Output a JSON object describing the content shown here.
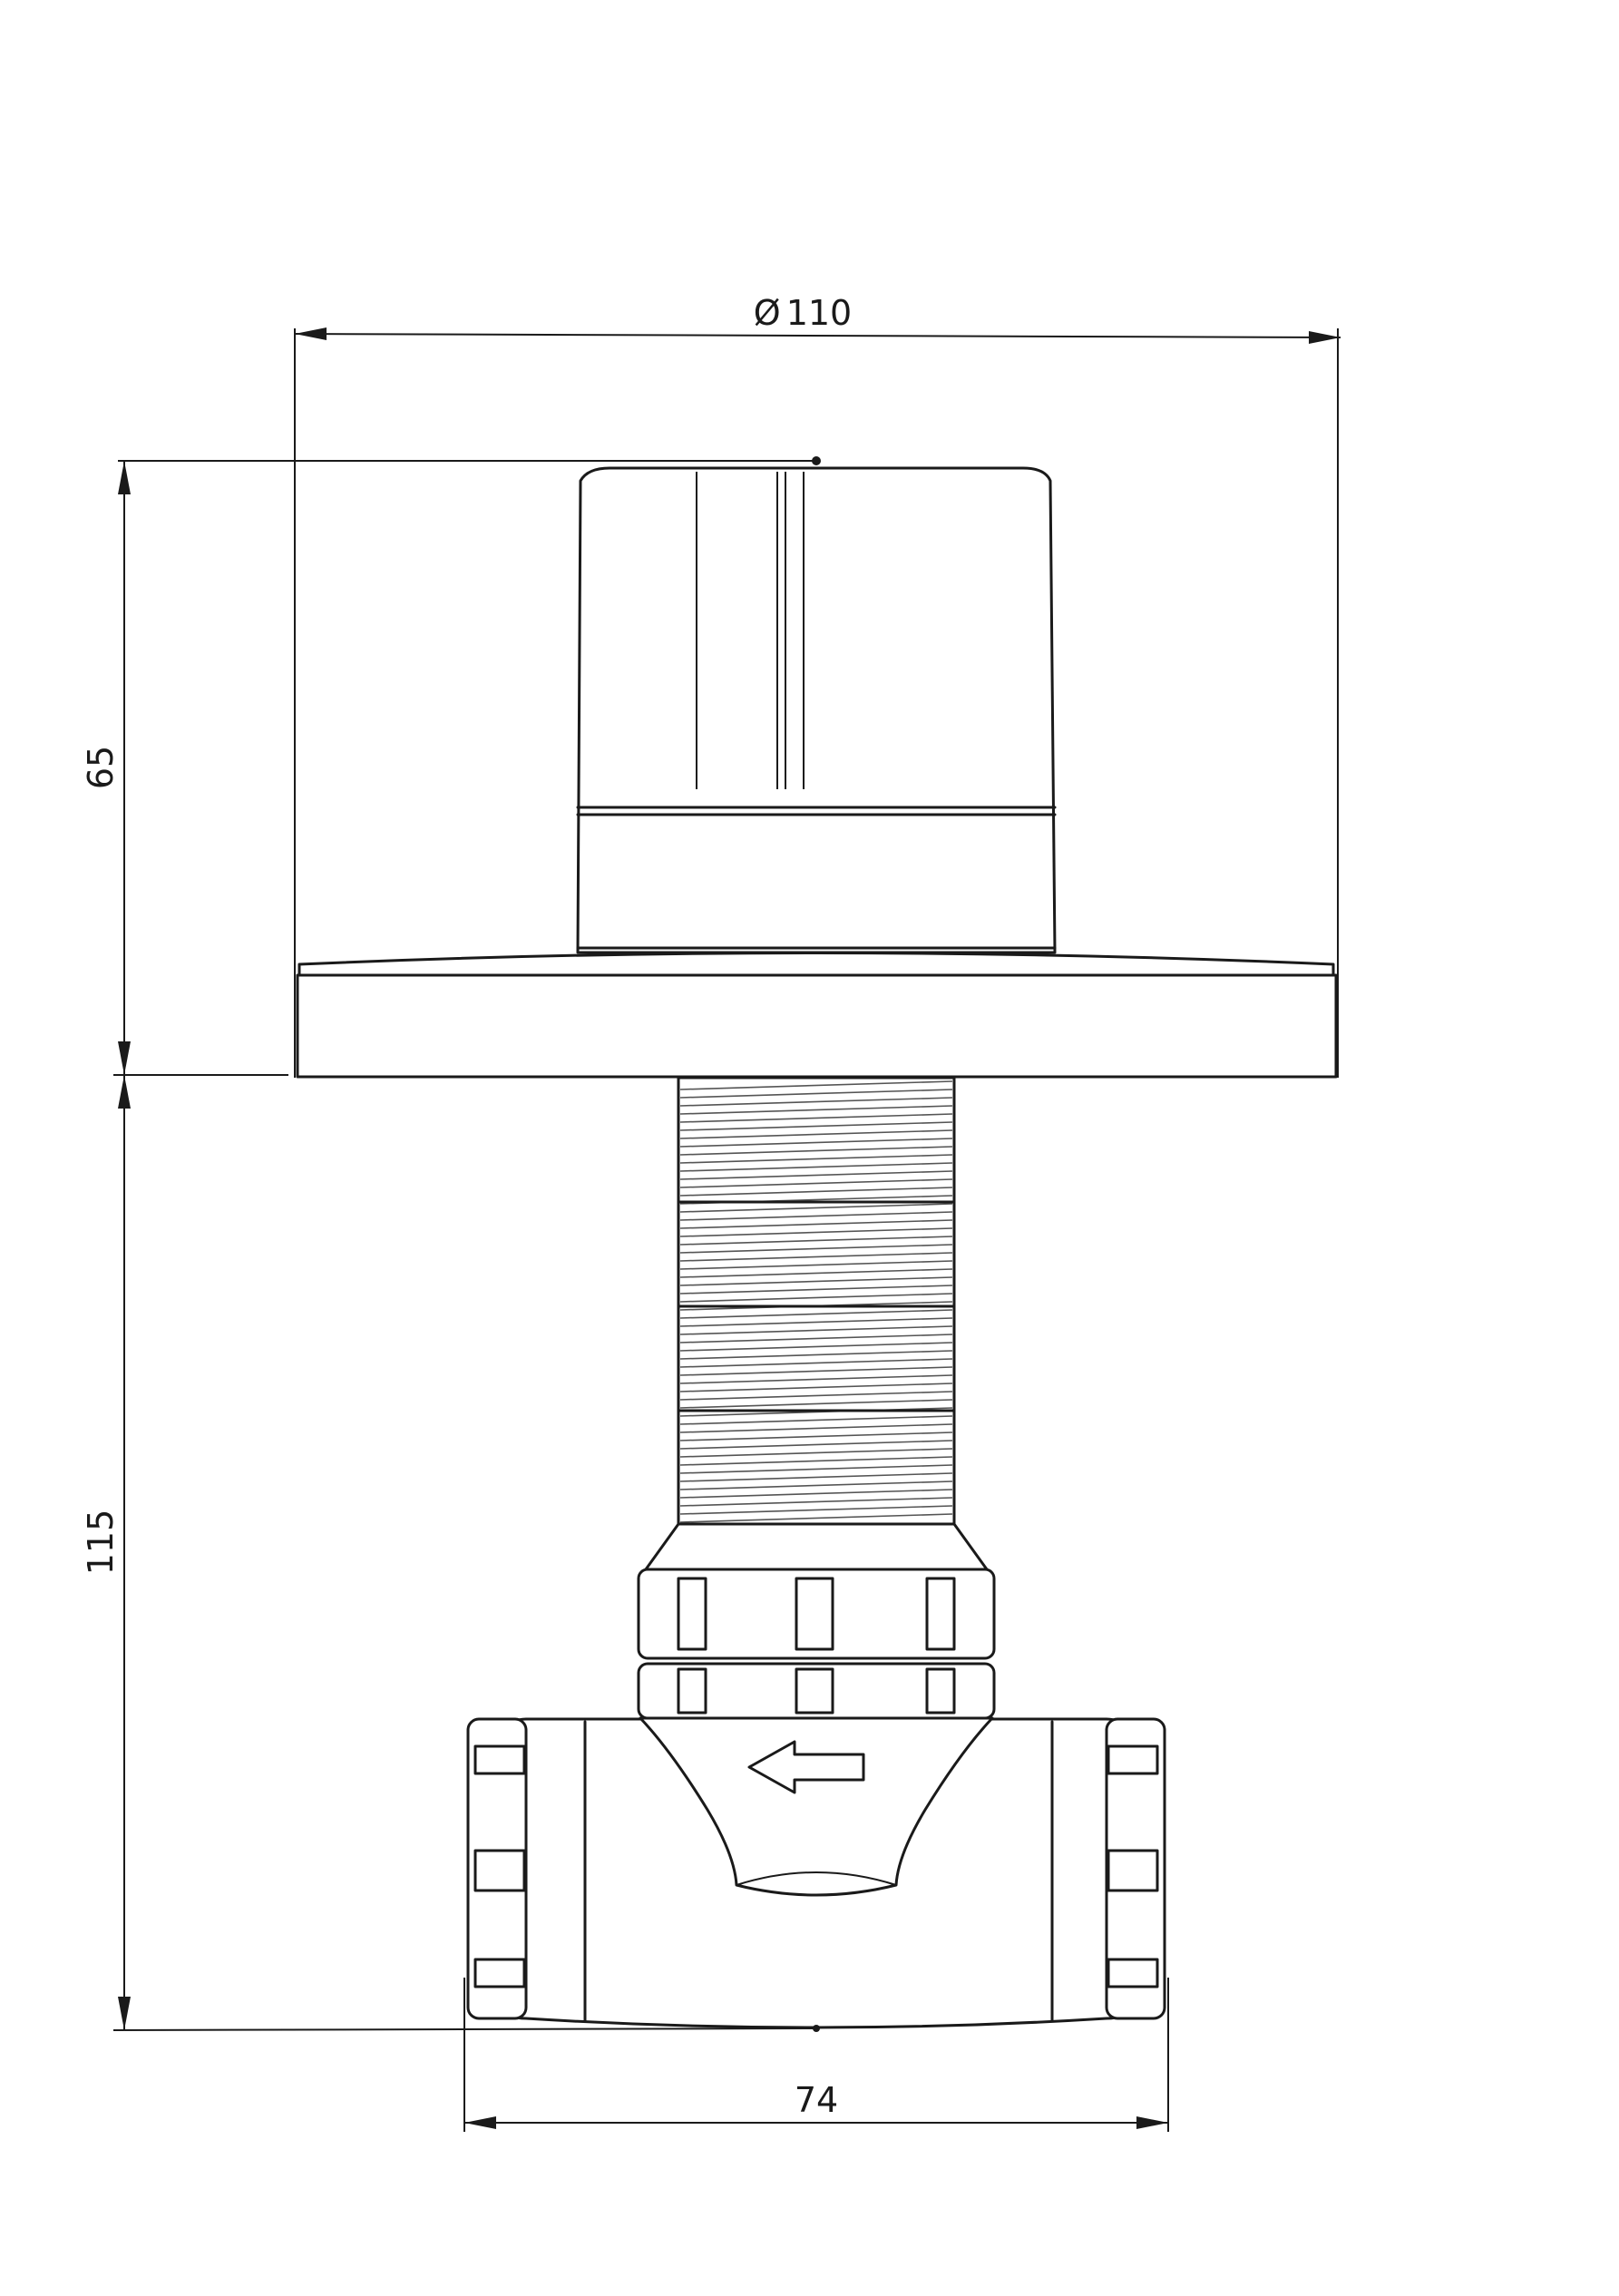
{
  "dimensions": {
    "diameter_symbol": "Ø",
    "diameter_value": "110",
    "height_top": "65",
    "height_bottom": "115",
    "width_bottom": "74"
  }
}
